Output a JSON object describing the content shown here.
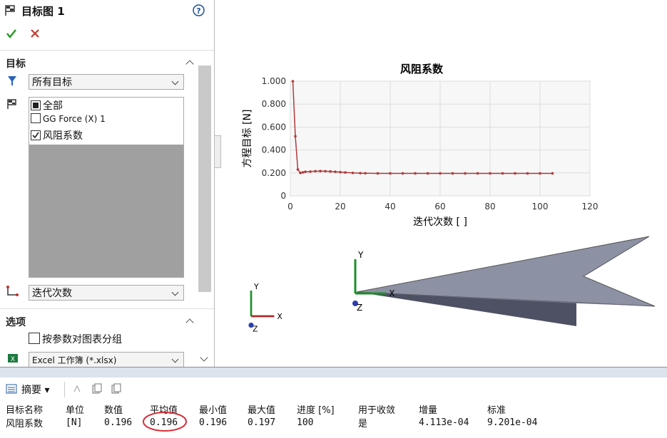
{
  "panel": {
    "title": "目标图 1",
    "goals_section": "目标",
    "filter": "所有目标",
    "goal_list": [
      "全部",
      "GG Force (X) 1",
      "风阻系数"
    ],
    "x_select": "迭代次数",
    "options_section": "选项",
    "group_option": "按参数对图表分组",
    "export": "Excel 工作簿 (*.xlsx)"
  },
  "chart_data": {
    "type": "line",
    "title": "风阻系数",
    "x_label": "迭代次数 [ ]",
    "y_label": "方程目标 [N]",
    "x": [
      1,
      2,
      3,
      4,
      5,
      6,
      8,
      10,
      12,
      14,
      16,
      18,
      20,
      22,
      25,
      28,
      30,
      35,
      40,
      45,
      50,
      55,
      60,
      65,
      70,
      75,
      80,
      85,
      90,
      95,
      100,
      105
    ],
    "series": [
      {
        "color": "#b23a3a",
        "values": [
          1.0,
          0.52,
          0.23,
          0.2,
          0.205,
          0.21,
          0.212,
          0.215,
          0.216,
          0.215,
          0.213,
          0.21,
          0.207,
          0.204,
          0.2,
          0.198,
          0.197,
          0.196,
          0.196,
          0.196,
          0.196,
          0.196,
          0.196,
          0.196,
          0.196,
          0.196,
          0.196,
          0.196,
          0.196,
          0.196,
          0.196,
          0.196
        ]
      }
    ],
    "xlim": [
      0,
      120
    ],
    "xticks": [
      0,
      20,
      40,
      60,
      80,
      100,
      120
    ],
    "ylim": [
      0,
      1
    ],
    "yticks": [
      0,
      {
        "value": 0.2,
        "label": "0.200"
      },
      {
        "value": 0.4,
        "label": "0.400"
      },
      {
        "value": 0.6,
        "label": "0.600"
      },
      {
        "value": 0.8,
        "label": "0.800"
      },
      {
        "value": 1,
        "label": "1.000"
      }
    ],
    "grid": true
  },
  "view": {
    "main_triad": [
      "Y",
      "X",
      "Z"
    ],
    "small_triad": [
      "Y",
      "X",
      "Z"
    ]
  },
  "toolbar": {
    "summary": "摘要"
  },
  "table": {
    "columns": [
      "目标名称",
      "单位",
      "数值",
      "平均值",
      "最小值",
      "最大值",
      "进度 [%]",
      "用于收敛",
      "增量",
      "标准"
    ],
    "rows": [
      [
        "风阻系数",
        "[N]",
        "0.196",
        "0.196",
        "0.196",
        "0.197",
        "100",
        "是",
        "4.113e-04",
        "9.201e-04"
      ]
    ]
  }
}
